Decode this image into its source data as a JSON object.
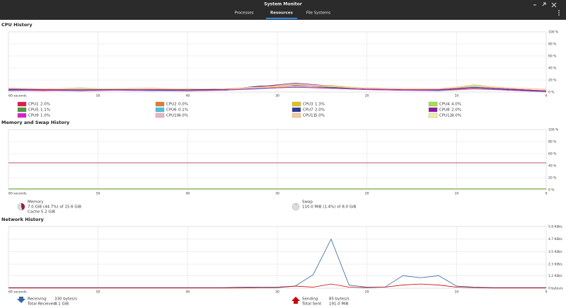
{
  "window": {
    "title": "System Monitor",
    "tabs": [
      "Processes",
      "Resources",
      "File Systems"
    ],
    "active_tab": 1
  },
  "cpu": {
    "title": "CPU History",
    "x": [
      60,
      56,
      52,
      48,
      44,
      40,
      36,
      32,
      28,
      24,
      20,
      16,
      12,
      8,
      4,
      0
    ],
    "xlim": [
      60,
      0
    ],
    "xticks": [
      {
        "value": 60,
        "label": "60 seconds"
      },
      50,
      40,
      30,
      20,
      10,
      0
    ],
    "ylim": [
      0,
      100
    ],
    "yticks": [
      {
        "value": 100,
        "label": "100 %"
      },
      {
        "value": 80,
        "label": "80 %"
      },
      {
        "value": 60,
        "label": "60 %"
      },
      {
        "value": 40,
        "label": "40 %"
      },
      {
        "value": 20,
        "label": "20 %"
      },
      {
        "value": 0,
        "label": "0 %"
      }
    ],
    "grid": true,
    "series": [
      {
        "name": "CPU1",
        "color": "#e01b4c",
        "values": [
          4,
          5,
          3,
          4,
          5,
          3,
          4,
          6,
          10,
          8,
          5,
          4,
          4,
          9,
          5,
          2
        ],
        "current": {
          "value": 2.0,
          "label": "2.0%"
        }
      },
      {
        "name": "CPU2",
        "color": "#e07b39",
        "values": [
          3,
          2,
          4,
          3,
          2,
          3,
          3,
          8,
          12,
          6,
          4,
          3,
          2,
          5,
          3,
          0
        ],
        "current": {
          "value": 0.0,
          "label": "0.0%"
        }
      },
      {
        "name": "CPU3",
        "color": "#e0c21b",
        "values": [
          5,
          4,
          5,
          6,
          4,
          5,
          4,
          7,
          9,
          11,
          6,
          5,
          4,
          8,
          4,
          1.3
        ],
        "current": {
          "value": 1.3,
          "label": "1.3%"
        }
      },
      {
        "name": "CPU4",
        "color": "#a3e04f",
        "values": [
          6,
          5,
          7,
          5,
          6,
          4,
          5,
          9,
          14,
          9,
          7,
          6,
          5,
          12,
          6,
          4
        ],
        "current": {
          "value": 4.0,
          "label": "4.0%"
        }
      },
      {
        "name": "CPU5",
        "color": "#4c9a3a",
        "values": [
          3,
          4,
          3,
          5,
          4,
          3,
          3,
          6,
          8,
          7,
          5,
          3,
          4,
          6,
          3,
          1.1
        ],
        "current": {
          "value": 1.1,
          "label": "1.1%"
        }
      },
      {
        "name": "CPU6",
        "color": "#48c4d8",
        "values": [
          2,
          3,
          2,
          3,
          2,
          2,
          3,
          5,
          9,
          6,
          4,
          3,
          2,
          7,
          3,
          0.1
        ],
        "current": {
          "value": 0.1,
          "label": "0.1%"
        }
      },
      {
        "name": "CPU7",
        "color": "#2c3a9c",
        "values": [
          4,
          3,
          4,
          4,
          3,
          4,
          4,
          10,
          11,
          8,
          6,
          4,
          3,
          8,
          4,
          2
        ],
        "current": {
          "value": 2.0,
          "label": "2.0%"
        }
      },
      {
        "name": "CPU8",
        "color": "#8c1ba0",
        "values": [
          5,
          4,
          4,
          5,
          4,
          4,
          5,
          9,
          15,
          10,
          5,
          4,
          4,
          10,
          5,
          2
        ],
        "current": {
          "value": 2.0,
          "label": "2.0%"
        }
      },
      {
        "name": "CPU9",
        "color": "#e01bd0",
        "values": [
          3,
          3,
          2,
          3,
          3,
          2,
          3,
          6,
          8,
          6,
          4,
          3,
          3,
          6,
          3,
          1
        ],
        "current": {
          "value": 1.0,
          "label": "1.0%"
        }
      },
      {
        "name": "CPU10",
        "color": "#f0b0c0",
        "values": [
          6,
          5,
          6,
          5,
          5,
          6,
          5,
          7,
          12,
          9,
          6,
          5,
          5,
          9,
          6,
          4
        ],
        "current": {
          "value": 4.0,
          "label": "4.0%"
        }
      },
      {
        "name": "CPU11",
        "color": "#f8c898",
        "values": [
          7,
          6,
          5,
          6,
          7,
          5,
          6,
          8,
          13,
          10,
          7,
          6,
          6,
          11,
          7,
          5
        ],
        "current": {
          "value": 5.0,
          "label": "5.0%"
        }
      },
      {
        "name": "CPU12",
        "color": "#f4eca0",
        "values": [
          6,
          6,
          5,
          5,
          6,
          5,
          6,
          8,
          10,
          9,
          6,
          5,
          6,
          10,
          6,
          4
        ],
        "current": {
          "value": 4.0,
          "label": "4.0%"
        }
      }
    ]
  },
  "memory": {
    "title": "Memory and Swap History",
    "x": [
      60,
      0
    ],
    "xlim": [
      60,
      0
    ],
    "xticks": [
      {
        "value": 60,
        "label": "60 seconds"
      },
      50,
      40,
      30,
      20,
      10,
      0
    ],
    "ylim": [
      0,
      100
    ],
    "yticks": [
      {
        "value": 100,
        "label": "100 %"
      },
      {
        "value": 80,
        "label": "80 %"
      },
      {
        "value": 60,
        "label": "60 %"
      },
      {
        "value": 40,
        "label": "40 %"
      },
      {
        "value": 20,
        "label": "20 %"
      },
      {
        "value": 0,
        "label": "0 %"
      }
    ],
    "grid": true,
    "series": [
      {
        "name": "Memory",
        "color": "#a01c3c",
        "values": [
          44.7,
          44.7
        ],
        "detail": "7.0 GiB (44.7%) of 15.6 GiB",
        "extra": "Cache 5.2 GiB"
      },
      {
        "name": "Swap",
        "color": "#4e9a06",
        "values": [
          1.4,
          1.4
        ],
        "detail": "110.0 MiB (1.4%) of 8.0 GiB"
      }
    ]
  },
  "network": {
    "title": "Network History",
    "x": [
      60,
      58,
      56,
      54,
      52,
      50,
      48,
      46,
      44,
      42,
      40,
      38,
      36,
      34,
      32,
      30,
      28,
      26,
      24,
      22,
      20,
      18,
      16,
      14,
      12,
      10,
      8,
      6,
      4,
      2,
      0
    ],
    "xlim": [
      60,
      0
    ],
    "xticks": [
      {
        "value": 60,
        "label": "60 seconds"
      },
      50,
      40,
      30,
      20,
      10,
      0
    ],
    "ylim": [
      0,
      5.9
    ],
    "yticks": [
      {
        "value": 5.9,
        "label": "5.9 KiB/s"
      },
      {
        "value": 4.7,
        "label": "4.7 KiB/s"
      },
      {
        "value": 3.5,
        "label": "3.5 KiB/s"
      },
      {
        "value": 2.3,
        "label": "2.3 KiB/s"
      },
      {
        "value": 1.2,
        "label": "1.2 KiB/s"
      },
      {
        "value": 0,
        "label": "0 bytes/s"
      }
    ],
    "grid": true,
    "series": [
      {
        "name": "Receiving",
        "color": "#3465a4",
        "rate": "330 bytes/s",
        "total_name": "Total Received",
        "total": "4.1 GiB",
        "values": [
          0.05,
          0.05,
          0.05,
          0.05,
          0.05,
          0.05,
          0.05,
          0.05,
          0.05,
          0.05,
          0.05,
          0.05,
          0.05,
          0.1,
          0.1,
          0.1,
          0.2,
          1.3,
          4.7,
          0.3,
          0.1,
          0.1,
          1.2,
          1.0,
          1.2,
          0.2,
          0.1,
          0.05,
          0.05,
          0.05,
          0.05
        ]
      },
      {
        "name": "Sending",
        "color": "#cc0000",
        "rate": "85 bytes/s",
        "total_name": "Total Sent",
        "total": "191.0 MiB",
        "values": [
          0.02,
          0.02,
          0.02,
          0.02,
          0.02,
          0.02,
          0.02,
          0.02,
          0.02,
          0.02,
          0.02,
          0.02,
          0.02,
          0.02,
          0.05,
          0.05,
          0.2,
          0.1,
          0.4,
          0.1,
          0.05,
          0.1,
          0.3,
          0.4,
          0.3,
          0.1,
          0.05,
          0.02,
          0.02,
          0.02,
          0.02
        ]
      }
    ]
  }
}
